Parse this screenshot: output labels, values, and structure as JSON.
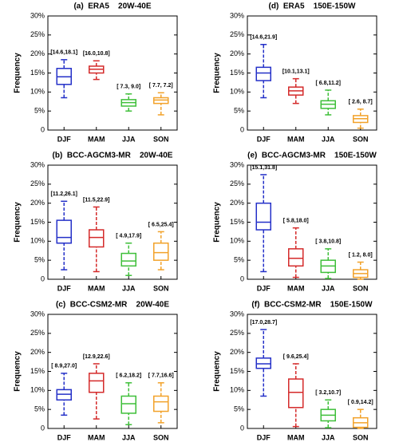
{
  "chart_data": [
    {
      "type": "box",
      "title": "(a)  ERA5    20W-40E",
      "ylabel": "Frequency",
      "categories": [
        "DJF",
        "MAM",
        "JJA",
        "SON"
      ],
      "colors": [
        "#2430c8",
        "#d42a2a",
        "#3fbf3a",
        "#f2a22a"
      ],
      "boxes": [
        {
          "min": 8.5,
          "q1": 12.0,
          "median": 14.0,
          "q3": 16.2,
          "max": 18.5
        },
        {
          "min": 13.3,
          "q1": 15.0,
          "median": 16.0,
          "q3": 16.8,
          "max": 18.2
        },
        {
          "min": 5.0,
          "q1": 6.3,
          "median": 7.2,
          "q3": 8.0,
          "max": 9.5
        },
        {
          "min": 4.0,
          "q1": 7.0,
          "median": 7.9,
          "q3": 8.5,
          "max": 9.8
        }
      ],
      "annotations": [
        "[14.6,18.1]",
        "[16.0,10.8]",
        "[ 7.3, 9.0]",
        "[ 7.7, 7.2]"
      ],
      "ylim": [
        0,
        30
      ],
      "yticks": [
        0,
        {
          "value": 5,
          "label": "5%"
        },
        {
          "value": 10,
          "label": "10%"
        },
        {
          "value": 15,
          "label": "15%"
        },
        {
          "value": 20,
          "label": "20%"
        },
        {
          "value": 25,
          "label": "25%"
        },
        {
          "value": 30,
          "label": "30%"
        }
      ]
    },
    {
      "type": "box",
      "title": "(d)  ERA5    150E-150W",
      "ylabel": "Frequency",
      "categories": [
        "DJF",
        "MAM",
        "JJA",
        "SON"
      ],
      "colors": [
        "#2430c8",
        "#d42a2a",
        "#3fbf3a",
        "#f2a22a"
      ],
      "boxes": [
        {
          "min": 8.5,
          "q1": 13.0,
          "median": 15.0,
          "q3": 16.5,
          "max": 22.5
        },
        {
          "min": 7.0,
          "q1": 9.2,
          "median": 10.3,
          "q3": 11.3,
          "max": 13.5
        },
        {
          "min": 4.0,
          "q1": 5.7,
          "median": 6.8,
          "q3": 7.7,
          "max": 10.5
        },
        {
          "min": 0.5,
          "q1": 2.0,
          "median": 3.0,
          "q3": 3.8,
          "max": 5.5
        }
      ],
      "annotations": [
        "[14.6,21.9]",
        "[10.1,13.1]",
        "[ 6.8,11.2]",
        "[ 2.6, 8.7]"
      ],
      "ylim": [
        0,
        30
      ],
      "yticks": [
        0,
        {
          "value": 5,
          "label": "5%"
        },
        {
          "value": 10,
          "label": "10%"
        },
        {
          "value": 15,
          "label": "15%"
        },
        {
          "value": 20,
          "label": "20%"
        },
        {
          "value": 25,
          "label": "25%"
        },
        {
          "value": 30,
          "label": "30%"
        }
      ]
    },
    {
      "type": "box",
      "title": "(b)  BCC-AGCM3-MR    20W-40E",
      "ylabel": "Frequency",
      "categories": [
        "DJF",
        "MAM",
        "JJA",
        "SON"
      ],
      "colors": [
        "#2430c8",
        "#d42a2a",
        "#3fbf3a",
        "#f2a22a"
      ],
      "boxes": [
        {
          "min": 2.5,
          "q1": 9.5,
          "median": 11.0,
          "q3": 15.5,
          "max": 20.5
        },
        {
          "min": 2.0,
          "q1": 8.5,
          "median": 11.0,
          "q3": 13.0,
          "max": 19.0
        },
        {
          "min": 1.0,
          "q1": 3.5,
          "median": 4.8,
          "q3": 6.8,
          "max": 9.5
        },
        {
          "min": 2.5,
          "q1": 5.0,
          "median": 7.0,
          "q3": 9.5,
          "max": 12.5
        }
      ],
      "annotations": [
        "[11.2,26.1]",
        "[11.5,22.9]",
        "[ 4.9,17.9]",
        "[ 6.5,25.4]"
      ],
      "ylim": [
        0,
        30
      ],
      "yticks": [
        0,
        {
          "value": 5,
          "label": "5%"
        },
        {
          "value": 10,
          "label": "10%"
        },
        {
          "value": 15,
          "label": "15%"
        },
        {
          "value": 20,
          "label": "20%"
        },
        {
          "value": 25,
          "label": "25%"
        },
        {
          "value": 30,
          "label": "30%"
        }
      ]
    },
    {
      "type": "box",
      "title": "(e)  BCC-AGCM3-MR    150E-150W",
      "ylabel": "Frequency",
      "categories": [
        "DJF",
        "MAM",
        "JJA",
        "SON"
      ],
      "colors": [
        "#2430c8",
        "#d42a2a",
        "#3fbf3a",
        "#f2a22a"
      ],
      "boxes": [
        {
          "min": 2.0,
          "q1": 13.0,
          "median": 15.0,
          "q3": 20.0,
          "max": 27.5
        },
        {
          "min": 0.5,
          "q1": 3.5,
          "median": 5.5,
          "q3": 8.0,
          "max": 13.5
        },
        {
          "min": 0.2,
          "q1": 1.8,
          "median": 3.5,
          "q3": 5.0,
          "max": 8.0
        },
        {
          "min": 0,
          "q1": 0.5,
          "median": 1.5,
          "q3": 2.5,
          "max": 4.5
        }
      ],
      "annotations": [
        "[15.1,31.8]",
        "[ 5.8,18.0]",
        "[ 3.8,10.8]",
        "[ 1.2, 8.0]"
      ],
      "ylim": [
        0,
        30
      ],
      "yticks": [
        0,
        {
          "value": 5,
          "label": "5%"
        },
        {
          "value": 10,
          "label": "10%"
        },
        {
          "value": 15,
          "label": "15%"
        },
        {
          "value": 20,
          "label": "20%"
        },
        {
          "value": 25,
          "label": "25%"
        },
        {
          "value": 30,
          "label": "30%"
        }
      ]
    },
    {
      "type": "box",
      "title": "(c)  BCC-CSM2-MR    20W-40E",
      "ylabel": "Frequency",
      "categories": [
        "DJF",
        "MAM",
        "JJA",
        "SON"
      ],
      "colors": [
        "#2430c8",
        "#d42a2a",
        "#3fbf3a",
        "#f2a22a"
      ],
      "boxes": [
        {
          "min": 3.5,
          "q1": 7.5,
          "median": 9.0,
          "q3": 10.2,
          "max": 14.5
        },
        {
          "min": 2.5,
          "q1": 9.5,
          "median": 12.5,
          "q3": 14.5,
          "max": 17.0
        },
        {
          "min": 1.0,
          "q1": 4.0,
          "median": 6.5,
          "q3": 8.5,
          "max": 12.0
        },
        {
          "min": 1.5,
          "q1": 4.5,
          "median": 7.0,
          "q3": 8.5,
          "max": 12.0
        }
      ],
      "annotations": [
        "[ 8.9,27.0]",
        "[12.9,22.6]",
        "[ 6.2,18.2]",
        "[ 7.7,16.6]"
      ],
      "ylim": [
        0,
        30
      ],
      "yticks": [
        0,
        {
          "value": 5,
          "label": "5%"
        },
        {
          "value": 10,
          "label": "10%"
        },
        {
          "value": 15,
          "label": "15%"
        },
        {
          "value": 20,
          "label": "20%"
        },
        {
          "value": 25,
          "label": "25%"
        },
        {
          "value": 30,
          "label": "30%"
        }
      ]
    },
    {
      "type": "box",
      "title": "(f)  BCC-CSM2-MR    150E-150W",
      "ylabel": "Frequency",
      "categories": [
        "DJF",
        "MAM",
        "JJA",
        "SON"
      ],
      "colors": [
        "#2430c8",
        "#d42a2a",
        "#3fbf3a",
        "#f2a22a"
      ],
      "boxes": [
        {
          "min": 8.5,
          "q1": 15.8,
          "median": 17.0,
          "q3": 18.5,
          "max": 26.0
        },
        {
          "min": 0.5,
          "q1": 5.5,
          "median": 9.5,
          "q3": 13.0,
          "max": 17.0
        },
        {
          "min": 0.2,
          "q1": 2.0,
          "median": 3.5,
          "q3": 5.0,
          "max": 7.5
        },
        {
          "min": 0,
          "q1": 0.3,
          "median": 1.5,
          "q3": 2.8,
          "max": 5.0
        }
      ],
      "annotations": [
        "[17.0,28.7]",
        "[ 9.6,25.4]",
        "[ 3.2,10.7]",
        "[ 0.9,14.2]"
      ],
      "ylim": [
        0,
        30
      ],
      "yticks": [
        0,
        {
          "value": 5,
          "label": "5%"
        },
        {
          "value": 10,
          "label": "10%"
        },
        {
          "value": 15,
          "label": "15%"
        },
        {
          "value": 20,
          "label": "20%"
        },
        {
          "value": 25,
          "label": "25%"
        },
        {
          "value": 30,
          "label": "30%"
        }
      ]
    }
  ]
}
